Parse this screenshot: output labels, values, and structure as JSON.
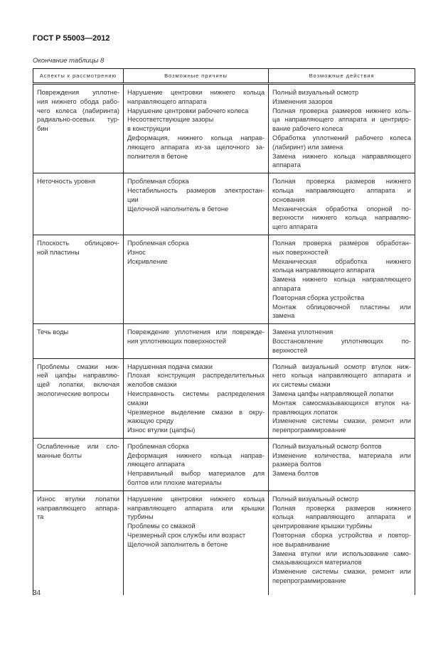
{
  "header": {
    "doc_id": "ГОСТ Р 55003—2012",
    "caption": "Окончание таблицы 8"
  },
  "table": {
    "columns": [
      "Аспекты к рассмотрению",
      "Возможные причины",
      "Возможные действия"
    ],
    "rows": [
      [
        [
          [
            "Повреждения уплотне-",
            "ния нижнего обода рабо-",
            "чего колеса (лабиринта)",
            "радиально-осевых тур-",
            "бин"
          ]
        ],
        [
          [
            "Нарушение центровки нижнего кольца",
            "направляющего аппарата"
          ],
          [
            "Нарушение центровки рабочего колеса"
          ],
          [
            "Несоответствующие зазоры"
          ],
          [
            "в конструкции"
          ],
          [
            "Деформация, нижнего кольца направ-",
            "ляющего аппарата из-за щелочного за-",
            "полнителя в бетоне"
          ]
        ],
        [
          [
            "Полный визуальный осмотр"
          ],
          [
            "Изменения зазоров"
          ],
          [
            "Полная проверка размеров нижнего коль-",
            "ца направляющего аппарата и центриро-",
            "вание рабочего колеса"
          ],
          [
            "Обработка уплотнений рабочего колеса",
            "(лабиринт) или замена"
          ],
          [
            "Замена нижнего кольца направляющего",
            "аппарата"
          ]
        ]
      ],
      [
        [
          [
            "Неточность уровня"
          ]
        ],
        [
          [
            "Проблемная сборка"
          ],
          [
            "Нестабильность размеров электростан-",
            "ции"
          ],
          [
            "Щелочной наполнитель в бетоне"
          ]
        ],
        [
          [
            "Полная проверка размеров нижнего",
            "кольца направляющего аппарата и",
            "основания"
          ],
          [
            "Механическая обработка опорной по-",
            "верхности нижнего кольца направляю-",
            "щего аппарата"
          ]
        ]
      ],
      [
        [
          [
            "Плоскость облицовоч-",
            "ной пластины"
          ]
        ],
        [
          [
            "Проблемная сборка"
          ],
          [
            "Износ"
          ],
          [
            "Искривление"
          ]
        ],
        [
          [
            "Полная проверка размеров обработан-",
            "ных поверхностей"
          ],
          [
            "Механическая обработка нижнего",
            "кольца направляющего аппарата"
          ],
          [
            "Замена нижнего кольца направляющего",
            "аппарата"
          ],
          [
            "Повторная сборка устройства"
          ],
          [
            "Монтаж облицовочной пластины или",
            "замена"
          ]
        ]
      ],
      [
        [
          [
            "Течь воды"
          ]
        ],
        [
          [
            "Повреждение уплотнения или поврежде-",
            "ния уплотняющих поверхностей"
          ]
        ],
        [
          [
            "Замена уплотнения"
          ],
          [
            "Восстановление уплотняющих по-",
            "верхностей"
          ]
        ]
      ],
      [
        [
          [
            "Проблемы смазки ниж-",
            "ней цапфы направляю-",
            "щей лопатки, включая",
            "экологические вопросы"
          ]
        ],
        [
          [
            "Нарушенная подача смазки"
          ],
          [
            "Плохая конструкция распределительных",
            "желобов смазки"
          ],
          [
            "Неисправность системы распределения",
            "смазки"
          ],
          [
            "Чрезмерное выделение смазки в окру-",
            "жающую среду"
          ],
          [
            "Износ втулки (цапфы)"
          ]
        ],
        [
          [
            "Полный визуальный осмотр втулок ниж-",
            "него кольца направляющего аппарата и",
            "их системы смазки"
          ],
          [
            "Замена цапфы направляющей лопатки"
          ],
          [
            "Монтаж самосмазывающихся втулок на-",
            "правляющих лопаток"
          ],
          [
            "Изменение системы смазки, ремонт или",
            "перепрограммирование"
          ]
        ]
      ],
      [
        [
          [
            "Ослабленные или сло-",
            "манные болты"
          ]
        ],
        [
          [
            "Проблемная сборка"
          ],
          [
            "Деформация нижнего кольца направ-",
            "ляющего аппарата"
          ],
          [
            "Неправильный выбор материалов для",
            "болтов или плохие материалы"
          ]
        ],
        [
          [
            "Полный визуальный осмотр болтов"
          ],
          [
            "Изменение количества, материала или",
            "размера болтов"
          ],
          [
            "Замена болтов"
          ]
        ]
      ],
      [
        [
          [
            "Износ втулки лопатки",
            "направляющего аппара-",
            "та"
          ]
        ],
        [
          [
            "Нарушение центровки нижнего кольца",
            "направляющего аппарата или крышки",
            "турбины"
          ],
          [
            "Проблемы со смазкой"
          ],
          [
            "Чрезмерный срок службы или возраст"
          ],
          [
            "Щелочной заполнитель в бетоне"
          ]
        ],
        [
          [
            "Полный визуальный осмотр"
          ],
          [
            "Полная проверка размеров нижнего",
            "кольца направляющего аппарата и",
            "центрирование крышки турбины"
          ],
          [
            "Повторная сборка устройства и повтор-",
            "ное выравнивание"
          ],
          [
            "Замена втулки или использование само-",
            "смазывающихся материалов"
          ],
          [
            "Изменение системы смазки, ремонт или",
            "перепрограммирование"
          ]
        ]
      ]
    ]
  },
  "footer": {
    "page_number": "34"
  }
}
